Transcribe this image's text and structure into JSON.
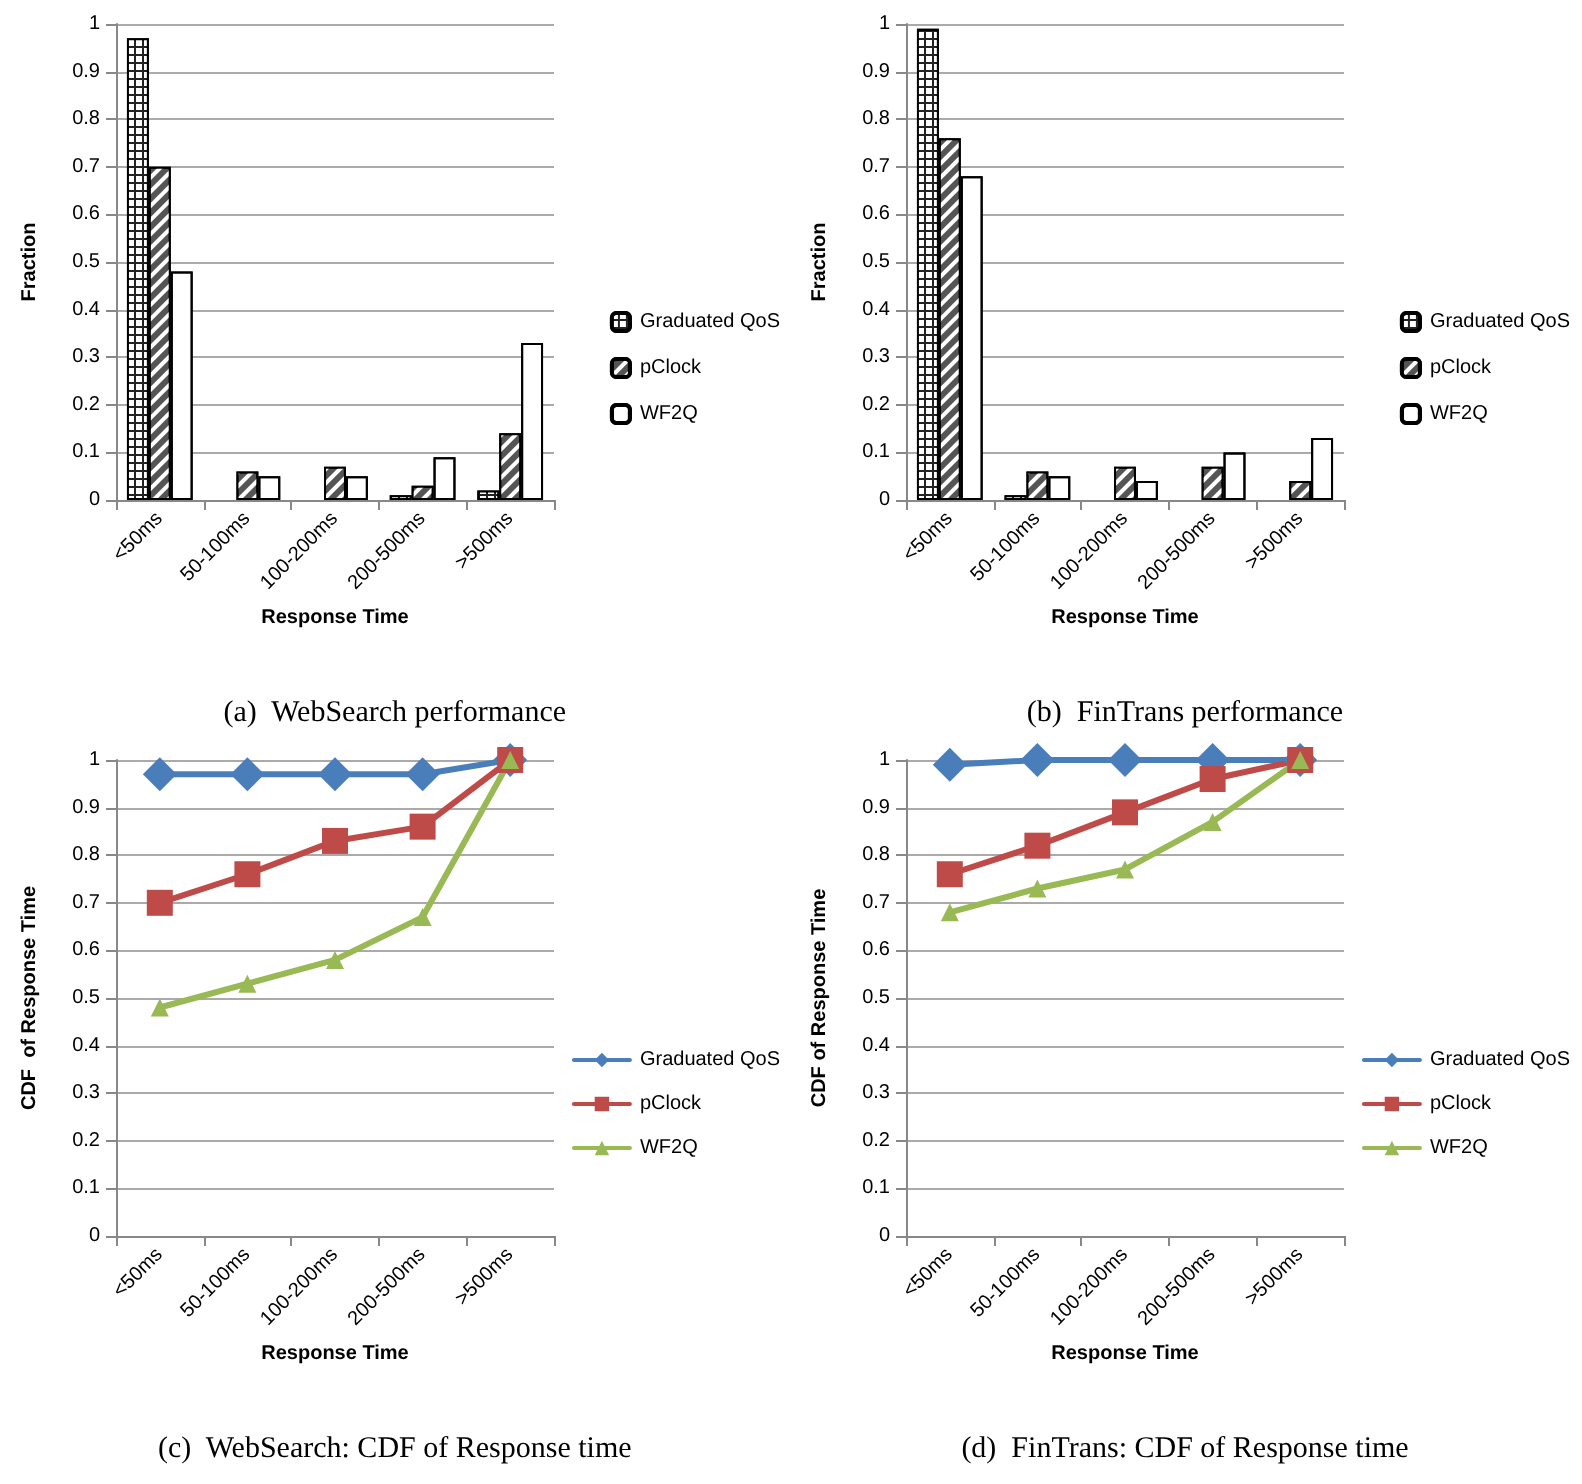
{
  "chart_data": [
    {
      "type": "bar",
      "xlabel": "Response Time",
      "ylabel": "Fraction",
      "categories": [
        "<50ms",
        "50-100ms",
        "100-200ms",
        "200-500ms",
        ">500ms"
      ],
      "ylim": [
        0,
        1
      ],
      "yticks": [
        0,
        0.1,
        0.2,
        0.3,
        0.4,
        0.5,
        0.6,
        0.7,
        0.8,
        0.9,
        1
      ],
      "grid": "y",
      "legend": "right",
      "annotations": [
        "(a)  WebSearch performance"
      ],
      "series": [
        {
          "name": "Graduated QoS",
          "color": "#222222",
          "values": [
            0.97,
            0,
            0,
            0.01,
            0.02
          ]
        },
        {
          "name": "pClock",
          "color": "#555555",
          "values": [
            0.7,
            0.06,
            0.07,
            0.03,
            0.14
          ]
        },
        {
          "name": "WF2Q",
          "color": "#ffffff",
          "values": [
            0.48,
            0.05,
            0.05,
            0.09,
            0.33
          ]
        }
      ]
    },
    {
      "type": "bar",
      "xlabel": "Response Time",
      "ylabel": "Fraction",
      "categories": [
        "<50ms",
        "50-100ms",
        "100-200ms",
        "200-500ms",
        ">500ms"
      ],
      "ylim": [
        0,
        1
      ],
      "yticks": [
        0,
        0.1,
        0.2,
        0.3,
        0.4,
        0.5,
        0.6,
        0.7,
        0.8,
        0.9,
        1
      ],
      "grid": "y",
      "legend": "right",
      "annotations": [
        "(b)  FinTrans performance"
      ],
      "series": [
        {
          "name": "Graduated QoS",
          "color": "#222222",
          "values": [
            0.99,
            0.01,
            0,
            0,
            0
          ]
        },
        {
          "name": "pClock",
          "color": "#555555",
          "values": [
            0.76,
            0.06,
            0.07,
            0.07,
            0.04
          ]
        },
        {
          "name": "WF2Q",
          "color": "#ffffff",
          "values": [
            0.68,
            0.05,
            0.04,
            0.1,
            0.13
          ]
        }
      ]
    },
    {
      "type": "line",
      "xlabel": "Response Time",
      "ylabel": "CDF  of Response Time",
      "categories": [
        "<50ms",
        "50-100ms",
        "100-200ms",
        "200-500ms",
        ">500ms"
      ],
      "ylim": [
        0,
        1
      ],
      "yticks": [
        0,
        0.1,
        0.2,
        0.3,
        0.4,
        0.5,
        0.6,
        0.7,
        0.8,
        0.9,
        1
      ],
      "grid": "y",
      "legend": "right",
      "line_style": "solid",
      "annotations": [
        "(c)  WebSearch: CDF of Response time"
      ],
      "series": [
        {
          "name": "Graduated QoS",
          "color": "#4a7ebb",
          "marker": "diamond",
          "values": [
            0.97,
            0.97,
            0.97,
            0.97,
            1
          ]
        },
        {
          "name": "pClock",
          "color": "#be4b48",
          "marker": "square",
          "values": [
            0.7,
            0.76,
            0.83,
            0.86,
            1
          ]
        },
        {
          "name": "WF2Q",
          "color": "#98b954",
          "marker": "triangle",
          "values": [
            0.48,
            0.53,
            0.58,
            0.67,
            1
          ]
        }
      ]
    },
    {
      "type": "line",
      "xlabel": "Response Time",
      "ylabel": "CDF of Response Time",
      "categories": [
        "<50ms",
        "50-100ms",
        "100-200ms",
        "200-500ms",
        ">500ms"
      ],
      "ylim": [
        0,
        1
      ],
      "yticks": [
        0,
        0.1,
        0.2,
        0.3,
        0.4,
        0.5,
        0.6,
        0.7,
        0.8,
        0.9,
        1
      ],
      "grid": "y",
      "legend": "right",
      "line_style": "solid",
      "annotations": [
        "(d)  FinTrans: CDF of Response time"
      ],
      "series": [
        {
          "name": "Graduated QoS",
          "color": "#4a7ebb",
          "marker": "diamond",
          "values": [
            0.99,
            1,
            1,
            1,
            1
          ]
        },
        {
          "name": "pClock",
          "color": "#be4b48",
          "marker": "square",
          "values": [
            0.76,
            0.82,
            0.89,
            0.96,
            1
          ]
        },
        {
          "name": "WF2Q",
          "color": "#98b954",
          "marker": "triangle",
          "values": [
            0.68,
            0.73,
            0.77,
            0.87,
            1
          ]
        }
      ]
    }
  ]
}
